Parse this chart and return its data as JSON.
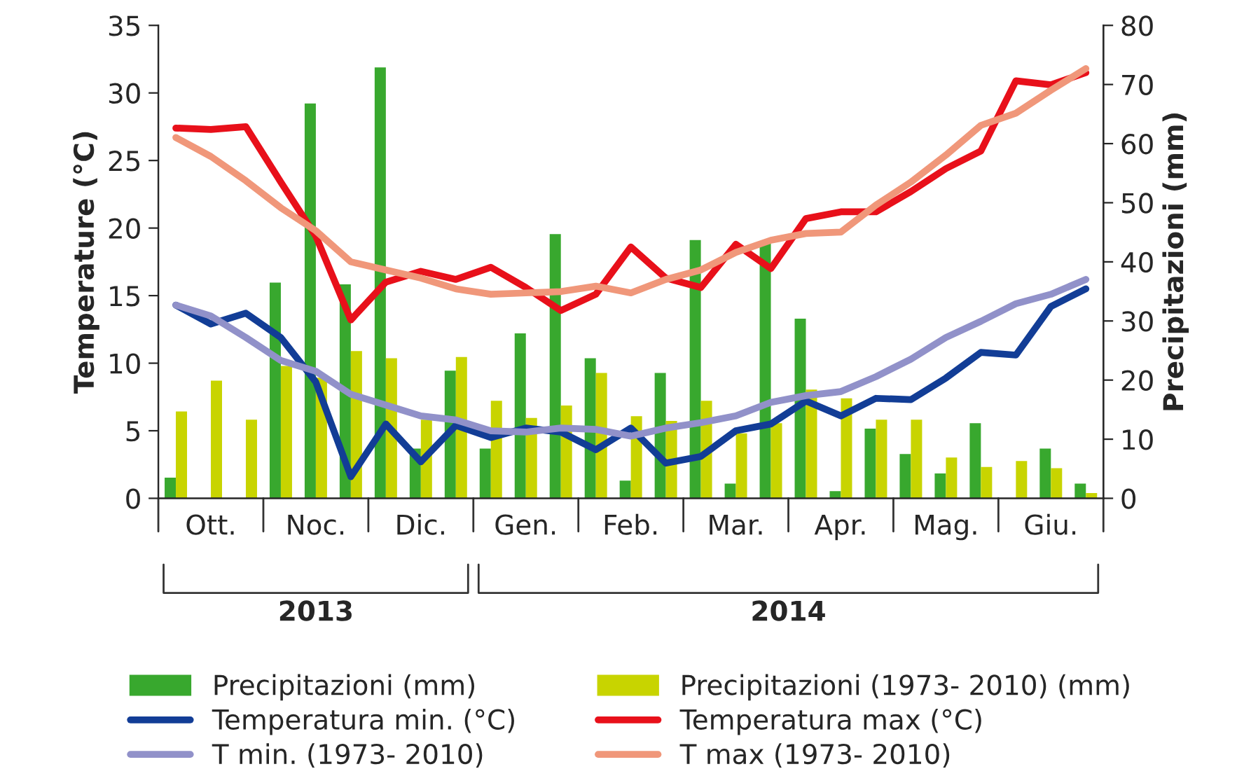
{
  "chart_data": {
    "type": "bar",
    "ylabel": "Temperature (°C)",
    "y2label": "Precipitazioni (mm)",
    "categories": [
      null,
      "Ott.",
      null,
      null,
      "Noc.",
      null,
      null,
      "Dic.",
      null,
      null,
      "Gen.",
      null,
      null,
      "Feb.",
      null,
      null,
      "Mar.",
      null,
      null,
      "Apr.",
      null,
      null,
      "Mag.",
      null,
      null,
      "Giu.",
      null
    ],
    "ylim": [
      0,
      35
    ],
    "yticks": [
      0,
      5,
      10,
      15,
      20,
      25,
      30,
      35
    ],
    "y2lim": [
      0,
      80
    ],
    "y2ticks": [
      0,
      10,
      20,
      30,
      40,
      50,
      60,
      70,
      80
    ],
    "grid": false,
    "legend": "bottom",
    "series": [
      {
        "name": "Precipitazioni (mm)",
        "axis": "y2",
        "color": "#38a82e",
        "values": [
          3.5,
          0,
          0,
          36.5,
          66.8,
          36.2,
          72.9,
          8.4,
          21.6,
          8.4,
          27.9,
          44.7,
          23.7,
          3.0,
          21.2,
          43.7,
          2.5,
          43.4,
          30.4,
          1.2,
          11.8,
          7.5,
          4.2,
          12.7,
          null,
          8.4,
          2.5
        ]
      },
      {
        "name": "Precipitazioni (1973- 2010) (mm)",
        "axis": "y2",
        "color": "#c8d400",
        "values": [
          14.7,
          19.9,
          13.3,
          22.4,
          20.4,
          24.9,
          23.7,
          13.3,
          23.9,
          16.5,
          13.6,
          15.7,
          21.2,
          13.9,
          13.1,
          16.5,
          11.0,
          12.7,
          18.4,
          16.9,
          13.3,
          13.3,
          6.9,
          5.3,
          6.3,
          5.1,
          0.9
        ]
      },
      {
        "name": "Temperatura min. (°C)",
        "type": "line",
        "axis": "y",
        "color": "#123d96",
        "values": [
          14.3,
          12.9,
          13.7,
          11.9,
          8.6,
          1.6,
          5.5,
          2.7,
          5.4,
          4.5,
          5.2,
          4.9,
          3.6,
          5.2,
          2.6,
          3.1,
          5.0,
          5.5,
          7.2,
          6.1,
          7.4,
          7.3,
          8.9,
          10.8,
          10.6,
          14.2,
          15.5
        ]
      },
      {
        "name": "Temperatura max (°C)",
        "type": "line",
        "axis": "y",
        "color": "#e8101a",
        "values": [
          27.4,
          27.3,
          27.5,
          23.4,
          19.4,
          13.2,
          16.0,
          16.8,
          16.2,
          17.1,
          15.6,
          13.9,
          15.1,
          18.6,
          16.3,
          15.6,
          18.8,
          17.0,
          20.7,
          21.2,
          21.2,
          22.7,
          24.4,
          25.7,
          30.9,
          30.6,
          31.5
        ]
      },
      {
        "name": "T min. (1973- 2010)",
        "type": "line",
        "axis": "y",
        "color": "#9191c9",
        "values": [
          14.3,
          13.5,
          11.9,
          10.2,
          9.4,
          7.7,
          6.9,
          6.1,
          5.8,
          5.0,
          4.9,
          5.2,
          5.1,
          4.6,
          5.2,
          5.6,
          6.1,
          7.1,
          7.6,
          7.9,
          9.0,
          10.3,
          11.9,
          13.1,
          14.4,
          15.1,
          16.2
        ]
      },
      {
        "name": "T max (1973- 2010)",
        "type": "line",
        "axis": "y",
        "color": "#f0977a",
        "values": [
          26.7,
          25.3,
          23.5,
          21.5,
          19.8,
          17.5,
          16.9,
          16.3,
          15.5,
          15.1,
          15.2,
          15.3,
          15.7,
          15.2,
          16.2,
          16.9,
          18.2,
          19.1,
          19.6,
          19.7,
          21.7,
          23.4,
          25.4,
          27.6,
          28.5,
          30.2,
          31.8
        ]
      }
    ],
    "annotations": [
      "2013",
      "2014"
    ]
  }
}
